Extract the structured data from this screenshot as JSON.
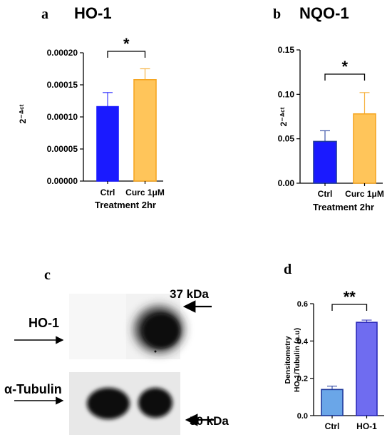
{
  "panels": {
    "a": {
      "letter": "a"
    },
    "b": {
      "letter": "b"
    },
    "c": {
      "letter": "c",
      "label_ho1": "HO-1",
      "label_tubulin": "α-Tubulin",
      "marker_top": "37 kDa",
      "marker_bottom": "50 kDa"
    },
    "d": {
      "letter": "d"
    }
  },
  "colors": {
    "ctrl_blue": "#1a1aff",
    "curc_orange": "#ffc55a",
    "curc_edge": "#f5a623",
    "ctrl_light": "#6aa6e8",
    "ho1_purple": "#6f6cf0"
  },
  "chart_data": [
    {
      "type": "bar",
      "title": "HO-1",
      "categories": [
        "Ctrl",
        "Curc 1μM"
      ],
      "values": [
        0.000116,
        0.000158
      ],
      "errors": [
        2.2e-05,
        1.7e-05
      ],
      "xlabel": "Treatment 2hr",
      "ylabel": "2⁻ᐞᶜᵗ",
      "ylim": [
        0,
        0.0002
      ],
      "yticks": [
        "0.00000",
        "0.00005",
        "0.00010",
        "0.00015",
        "0.00020"
      ],
      "significance": "*"
    },
    {
      "type": "bar",
      "title": "NQO-1",
      "categories": [
        "Ctrl",
        "Curc 1μM"
      ],
      "values": [
        0.047,
        0.078
      ],
      "errors": [
        0.012,
        0.024
      ],
      "xlabel": "Treatment 2hr",
      "ylabel": "2⁻ᐞᶜᵗ",
      "ylim": [
        0,
        0.15
      ],
      "yticks": [
        "0.00",
        "0.05",
        "0.10",
        "0.15"
      ],
      "significance": "*"
    },
    {
      "type": "bar",
      "title": "",
      "categories": [
        "Ctrl",
        "HO-1"
      ],
      "values": [
        0.14,
        0.5
      ],
      "errors": [
        0.018,
        0.012
      ],
      "xlabel": "",
      "ylabel_line1": "Densitometry",
      "ylabel_line2": "HO-1/Tubulin (a.u)",
      "ylim": [
        0,
        0.6
      ],
      "yticks": [
        "0.0",
        "0.2",
        "0.4",
        "0.6"
      ],
      "significance": "**"
    }
  ]
}
